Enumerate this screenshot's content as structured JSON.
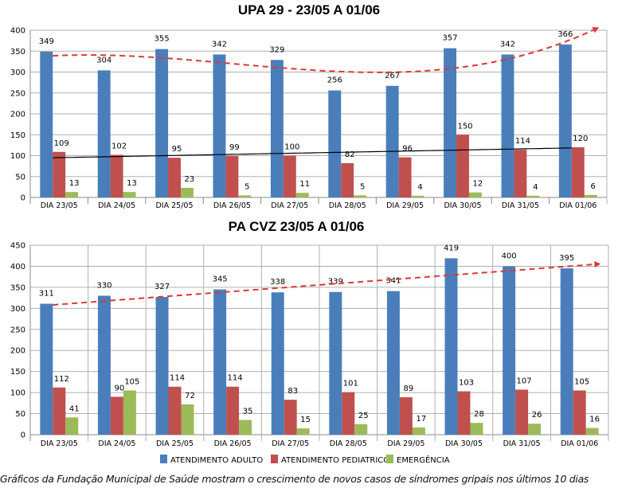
{
  "colors": {
    "adult": "#4a7ebb",
    "pediatric": "#c0504d",
    "emergency": "#9bbb59",
    "trend_red": "#d9383a",
    "trend_black": "#000000",
    "grid": "#b0b0b0"
  },
  "legend": [
    "ATENDIMENTO ADULTO",
    "ATENDIMENTO PEDIATRICO",
    "EMERGÊNCIA"
  ],
  "caption": "Gráficos da Fundação Municipal de Saúde mostram o crescimento de novos casos de síndromes gripais nos últimos 10 dias",
  "chart_data": [
    {
      "type": "bar",
      "title": "UPA 29 - 23/05 A 01/06",
      "categories": [
        "DIA 23/05",
        "DIA 24/05",
        "DIA 25/05",
        "DIA 26/05",
        "DIA 27/05",
        "DIA 28/05",
        "DIA 29/05",
        "DIA 30/05",
        "DIA 31/05",
        "DIA 01/06"
      ],
      "series": [
        {
          "name": "ATENDIMENTO ADULTO",
          "values": [
            349,
            304,
            355,
            342,
            329,
            256,
            267,
            357,
            342,
            366
          ]
        },
        {
          "name": "ATENDIMENTO PEDIATRICO",
          "values": [
            109,
            102,
            95,
            99,
            100,
            82,
            96,
            150,
            114,
            120
          ]
        },
        {
          "name": "EMERGÊNCIA",
          "values": [
            13,
            13,
            23,
            5,
            11,
            5,
            4,
            12,
            4,
            6
          ]
        }
      ],
      "ylim": [
        0,
        400
      ],
      "yticks": [
        0,
        50,
        100,
        150,
        200,
        250,
        300,
        350,
        400
      ],
      "grid": "horizontal",
      "trendlines": [
        {
          "series": "ATENDIMENTO ADULTO",
          "kind": "polynomial",
          "style": "red dashed with arrow"
        },
        {
          "series": "ATENDIMENTO PEDIATRICO",
          "kind": "linear",
          "style": "black solid"
        }
      ]
    },
    {
      "type": "bar",
      "title": "PA CVZ 23/05 A 01/06",
      "categories": [
        "DIA 23/05",
        "DIA 24/05",
        "DIA 25/05",
        "DIA 26/05",
        "DIA 27/05",
        "DIA 28/05",
        "DIA 29/05",
        "DIA 30/05",
        "DIA 31/05",
        "DIA 01/06"
      ],
      "series": [
        {
          "name": "ATENDIMENTO ADULTO",
          "values": [
            311,
            330,
            327,
            345,
            338,
            339,
            341,
            419,
            400,
            395
          ]
        },
        {
          "name": "ATENDIMENTO PEDIATRICO",
          "values": [
            112,
            90,
            114,
            114,
            83,
            101,
            89,
            103,
            107,
            105
          ]
        },
        {
          "name": "EMERGÊNCIA",
          "values": [
            41,
            105,
            72,
            35,
            15,
            25,
            17,
            28,
            26,
            16
          ]
        }
      ],
      "ylim": [
        0,
        450
      ],
      "yticks": [
        0,
        50,
        100,
        150,
        200,
        250,
        300,
        350,
        400,
        450
      ],
      "grid": "horizontal and vertical",
      "legend_position": "bottom",
      "trendlines": [
        {
          "series": "ATENDIMENTO ADULTO",
          "kind": "linear",
          "style": "red dashed with arrow"
        }
      ]
    }
  ]
}
